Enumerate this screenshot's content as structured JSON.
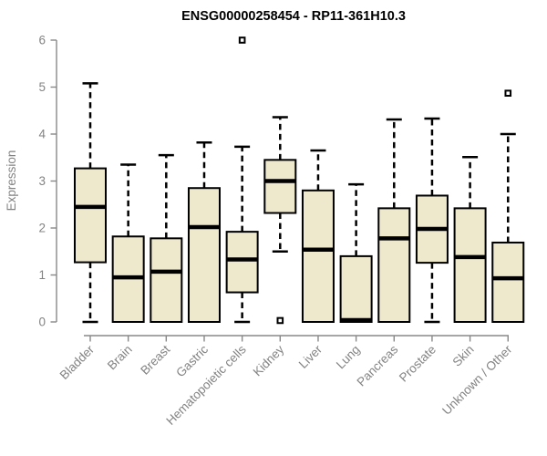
{
  "chart_data": {
    "type": "boxplot",
    "title": "ENSG00000258454 - RP11-361H10.3",
    "xlabel": "",
    "ylabel": "Expression",
    "ylim": [
      0,
      6
    ],
    "yticks": [
      0,
      1,
      2,
      3,
      4,
      5,
      6
    ],
    "grid": false,
    "legend": null,
    "outlier_marker": "open-square",
    "categories": [
      "Bladder",
      "Brain",
      "Breast",
      "Gastric",
      "Hematopoietic cells",
      "Kidney",
      "Liver",
      "Lung",
      "Pancreas",
      "Prostate",
      "Skin",
      "Unknown / Other"
    ],
    "boxes": [
      {
        "category": "Bladder",
        "whisker_low": 0.0,
        "q1": 1.27,
        "median": 2.45,
        "q3": 3.27,
        "whisker_high": 5.08,
        "outliers": []
      },
      {
        "category": "Brain",
        "whisker_low": 0.0,
        "q1": 0.0,
        "median": 0.95,
        "q3": 1.82,
        "whisker_high": 3.35,
        "outliers": []
      },
      {
        "category": "Breast",
        "whisker_low": 0.0,
        "q1": 0.0,
        "median": 1.07,
        "q3": 1.78,
        "whisker_high": 3.55,
        "outliers": []
      },
      {
        "category": "Gastric",
        "whisker_low": 0.0,
        "q1": 0.0,
        "median": 2.02,
        "q3": 2.85,
        "whisker_high": 3.82,
        "outliers": []
      },
      {
        "category": "Hematopoietic cells",
        "whisker_low": 0.0,
        "q1": 0.63,
        "median": 1.33,
        "q3": 1.92,
        "whisker_high": 3.73,
        "outliers": [
          6.0
        ]
      },
      {
        "category": "Kidney",
        "whisker_low": 1.5,
        "q1": 2.32,
        "median": 3.0,
        "q3": 3.45,
        "whisker_high": 4.36,
        "outliers": [
          0.03
        ]
      },
      {
        "category": "Liver",
        "whisker_low": 0.0,
        "q1": 0.0,
        "median": 1.54,
        "q3": 2.8,
        "whisker_high": 3.65,
        "outliers": []
      },
      {
        "category": "Lung",
        "whisker_low": 0.0,
        "q1": 0.0,
        "median": 0.04,
        "q3": 1.4,
        "whisker_high": 2.93,
        "outliers": []
      },
      {
        "category": "Pancreas",
        "whisker_low": 0.0,
        "q1": 0.0,
        "median": 1.78,
        "q3": 2.42,
        "whisker_high": 4.31,
        "outliers": []
      },
      {
        "category": "Prostate",
        "whisker_low": 0.0,
        "q1": 1.26,
        "median": 1.98,
        "q3": 2.69,
        "whisker_high": 4.33,
        "outliers": []
      },
      {
        "category": "Skin",
        "whisker_low": 0.0,
        "q1": 0.0,
        "median": 1.38,
        "q3": 2.42,
        "whisker_high": 3.51,
        "outliers": []
      },
      {
        "category": "Unknown / Other",
        "whisker_low": 0.0,
        "q1": 0.0,
        "median": 0.93,
        "q3": 1.69,
        "whisker_high": 4.0,
        "outliers": [
          4.87
        ]
      }
    ],
    "colors": {
      "box_fill": "#EEE8CD",
      "box_border": "#000000",
      "median": "#000000",
      "whisker": "#000000",
      "axis_line": "#888888",
      "axis_text": "#838383",
      "title": "#000000",
      "background": "#ffffff"
    }
  }
}
